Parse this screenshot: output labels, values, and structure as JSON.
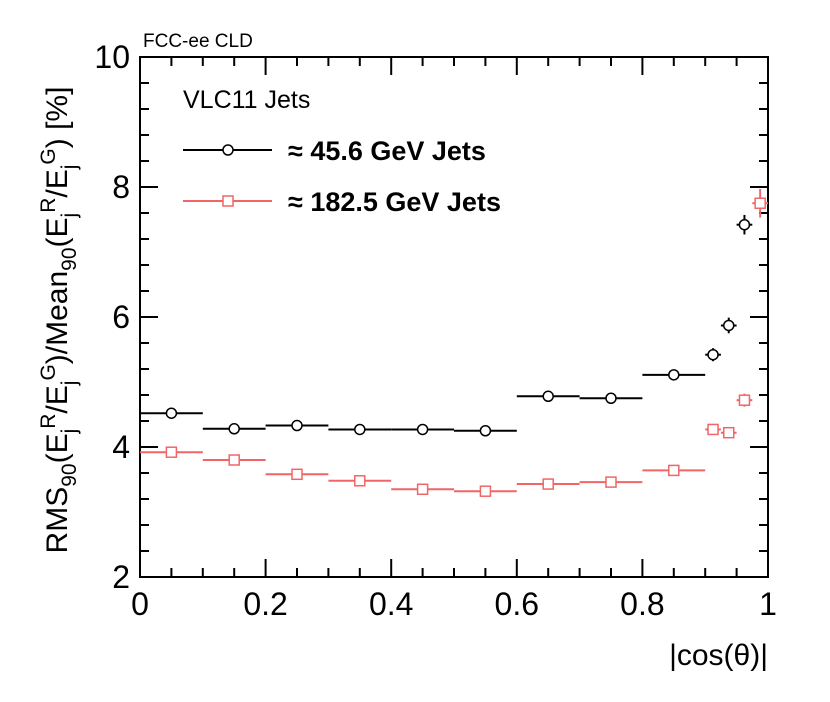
{
  "chart_data": {
    "type": "scatter",
    "experiment_label": "FCC-ee CLD",
    "legend_title": "VLC11 Jets",
    "xlabel": "|cos(θ)|",
    "ylabel": "RMS_90(E_j^R/E_j^G)/Mean_90(E_j^R/E_j^G) [%]",
    "xlim": [
      0,
      1
    ],
    "ylim": [
      2,
      10
    ],
    "x_ticks": [
      "0",
      "0.2",
      "0.4",
      "0.6",
      "0.8",
      "1"
    ],
    "y_ticks": [
      "2",
      "4",
      "6",
      "8",
      "10"
    ],
    "series": [
      {
        "name": "≈ 45.6 GeV Jets",
        "color": "#000000",
        "marker": "circle",
        "points": [
          {
            "x": 0.05,
            "xerr": 0.05,
            "y": 4.52,
            "yerr": 0.03
          },
          {
            "x": 0.15,
            "xerr": 0.05,
            "y": 4.28,
            "yerr": 0.03
          },
          {
            "x": 0.25,
            "xerr": 0.05,
            "y": 4.33,
            "yerr": 0.03
          },
          {
            "x": 0.35,
            "xerr": 0.05,
            "y": 4.27,
            "yerr": 0.03
          },
          {
            "x": 0.45,
            "xerr": 0.05,
            "y": 4.27,
            "yerr": 0.03
          },
          {
            "x": 0.55,
            "xerr": 0.05,
            "y": 4.25,
            "yerr": 0.03
          },
          {
            "x": 0.65,
            "xerr": 0.05,
            "y": 4.78,
            "yerr": 0.03
          },
          {
            "x": 0.75,
            "xerr": 0.05,
            "y": 4.75,
            "yerr": 0.03
          },
          {
            "x": 0.85,
            "xerr": 0.05,
            "y": 5.11,
            "yerr": 0.04
          },
          {
            "x": 0.9125,
            "xerr": 0.0125,
            "y": 5.42,
            "yerr": 0.1
          },
          {
            "x": 0.9375,
            "xerr": 0.0125,
            "y": 5.87,
            "yerr": 0.12
          },
          {
            "x": 0.9625,
            "xerr": 0.0125,
            "y": 7.42,
            "yerr": 0.15
          }
        ]
      },
      {
        "name": "≈ 182.5 GeV Jets",
        "color": "#f06666",
        "marker": "square",
        "points": [
          {
            "x": 0.05,
            "xerr": 0.05,
            "y": 3.92,
            "yerr": 0.03
          },
          {
            "x": 0.15,
            "xerr": 0.05,
            "y": 3.8,
            "yerr": 0.03
          },
          {
            "x": 0.25,
            "xerr": 0.05,
            "y": 3.58,
            "yerr": 0.03
          },
          {
            "x": 0.35,
            "xerr": 0.05,
            "y": 3.48,
            "yerr": 0.03
          },
          {
            "x": 0.45,
            "xerr": 0.05,
            "y": 3.35,
            "yerr": 0.03
          },
          {
            "x": 0.55,
            "xerr": 0.05,
            "y": 3.32,
            "yerr": 0.03
          },
          {
            "x": 0.65,
            "xerr": 0.05,
            "y": 3.43,
            "yerr": 0.03
          },
          {
            "x": 0.75,
            "xerr": 0.05,
            "y": 3.46,
            "yerr": 0.03
          },
          {
            "x": 0.85,
            "xerr": 0.05,
            "y": 3.64,
            "yerr": 0.03
          },
          {
            "x": 0.9125,
            "xerr": 0.0125,
            "y": 4.27,
            "yerr": 0.08
          },
          {
            "x": 0.9375,
            "xerr": 0.0125,
            "y": 4.22,
            "yerr": 0.08
          },
          {
            "x": 0.9625,
            "xerr": 0.0125,
            "y": 4.72,
            "yerr": 0.1
          },
          {
            "x": 0.9875,
            "xerr": 0.0125,
            "y": 7.75,
            "yerr": 0.22
          }
        ]
      }
    ]
  }
}
